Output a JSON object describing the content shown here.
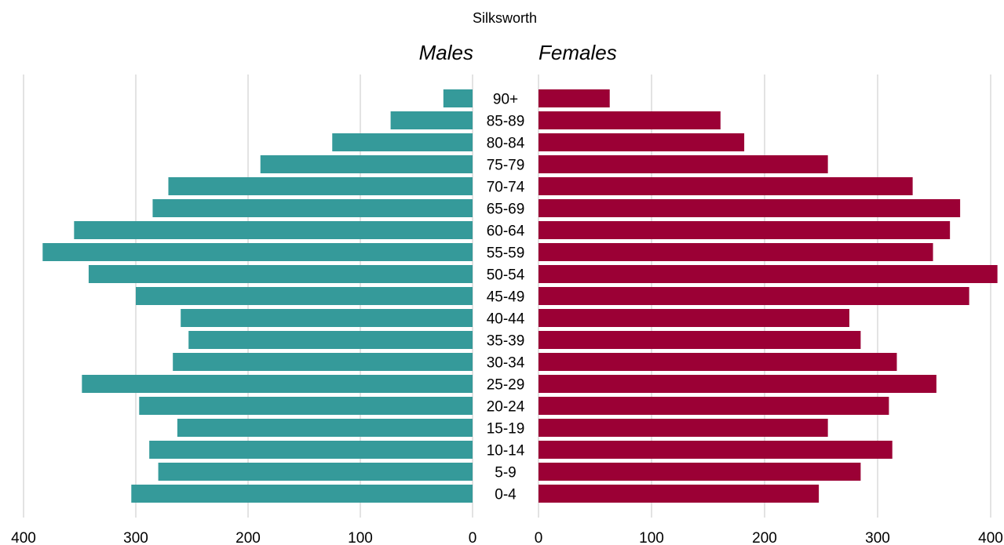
{
  "chart_data": {
    "type": "bar",
    "title": "Silksworth",
    "left_label": "Males",
    "right_label": "Females",
    "categories": [
      "0-4",
      "5-9",
      "10-14",
      "15-19",
      "20-24",
      "25-29",
      "30-34",
      "35-39",
      "40-44",
      "45-49",
      "50-54",
      "55-59",
      "60-64",
      "65-69",
      "70-74",
      "75-79",
      "80-84",
      "85-89",
      "90+"
    ],
    "series": [
      {
        "name": "Males",
        "color": "#359a9a",
        "values": [
          304,
          280,
          288,
          263,
          297,
          348,
          267,
          253,
          260,
          300,
          342,
          383,
          355,
          285,
          271,
          189,
          125,
          73,
          26
        ]
      },
      {
        "name": "Females",
        "color": "#9b0035",
        "values": [
          248,
          285,
          313,
          256,
          310,
          352,
          317,
          285,
          275,
          381,
          406,
          349,
          364,
          373,
          331,
          256,
          182,
          161,
          63
        ]
      }
    ],
    "xlim": [
      0,
      400
    ],
    "ticks": [
      0,
      100,
      200,
      300,
      400
    ],
    "tick_labels": [
      "0",
      "100",
      "200",
      "300",
      "400"
    ],
    "grid": true
  }
}
